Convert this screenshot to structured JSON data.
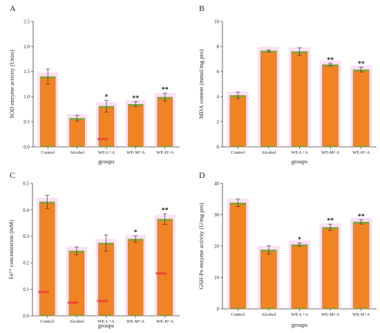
{
  "colors": {
    "bar": "#f08424",
    "bar_edge": "#c96a14",
    "accent_green": "#7ba83a",
    "halo": "#f6c6ee",
    "stripe": "#ea3b3b",
    "axis": "#333333",
    "error": "#333333",
    "category_label": "#8a2d5c"
  },
  "chart_data": [
    {
      "panel": "A",
      "type": "bar",
      "ylabel": "SOD enzyme activity (Units)",
      "xlabel": "groups",
      "categories": [
        "Control",
        "Alcohol",
        "WE-L+A",
        "WE-M+A",
        "WE-H+A"
      ],
      "values": [
        1.4,
        0.57,
        0.81,
        0.85,
        0.99
      ],
      "errors": [
        0.15,
        0.06,
        0.12,
        0.05,
        0.08
      ],
      "significance": [
        "",
        "",
        "*",
        "**",
        "**"
      ],
      "ylim": [
        0,
        2.5
      ],
      "yticks": [
        "0.0",
        "0.5",
        "1.0",
        "1.5",
        "2.0",
        "2.5"
      ]
    },
    {
      "panel": "B",
      "type": "bar",
      "ylabel": "MDA content (mmol/mg pro)",
      "xlabel": "groups",
      "categories": [
        "Control",
        "Alcohol",
        "WE-L+A",
        "WE-M+A",
        "WE-H+A"
      ],
      "values": [
        4.1,
        7.65,
        7.6,
        6.55,
        6.15
      ],
      "errors": [
        0.25,
        0.08,
        0.3,
        0.1,
        0.2
      ],
      "significance": [
        "",
        "",
        "",
        "**",
        "**"
      ],
      "ylim": [
        0,
        10
      ],
      "yticks": [
        "0",
        "2",
        "4",
        "6",
        "8",
        "10"
      ]
    },
    {
      "panel": "C",
      "type": "bar",
      "ylabel": "Fe²⁺ concentration (mM)",
      "xlabel": "groups",
      "categories": [
        "Control",
        "Alcohol",
        "WE-L+A",
        "WE-M+A",
        "WE-H+A"
      ],
      "values": [
        0.43,
        0.245,
        0.275,
        0.29,
        0.365
      ],
      "errors": [
        0.025,
        0.015,
        0.03,
        0.012,
        0.02
      ],
      "significance": [
        "",
        "",
        "",
        "*",
        "**"
      ],
      "ylim": [
        0,
        0.5
      ],
      "yticks": [
        "0.0",
        "0.1",
        "0.2",
        "0.3",
        "0.4",
        "0.5"
      ]
    },
    {
      "panel": "D",
      "type": "bar",
      "ylabel": "GSH-Px enzyme activity (U/mg pro)",
      "xlabel": "groups",
      "categories": [
        "Control",
        "Alcohol",
        "WE-L+A",
        "WE-M+A",
        "WE-H+A"
      ],
      "values": [
        33.8,
        18.8,
        20.5,
        26.0,
        27.7
      ],
      "errors": [
        1.2,
        1.3,
        0.5,
        1.0,
        0.7
      ],
      "significance": [
        "",
        "",
        "*",
        "**",
        "**"
      ],
      "ylim": [
        0,
        40
      ],
      "yticks": [
        "0",
        "10",
        "20",
        "30",
        "40"
      ]
    }
  ]
}
